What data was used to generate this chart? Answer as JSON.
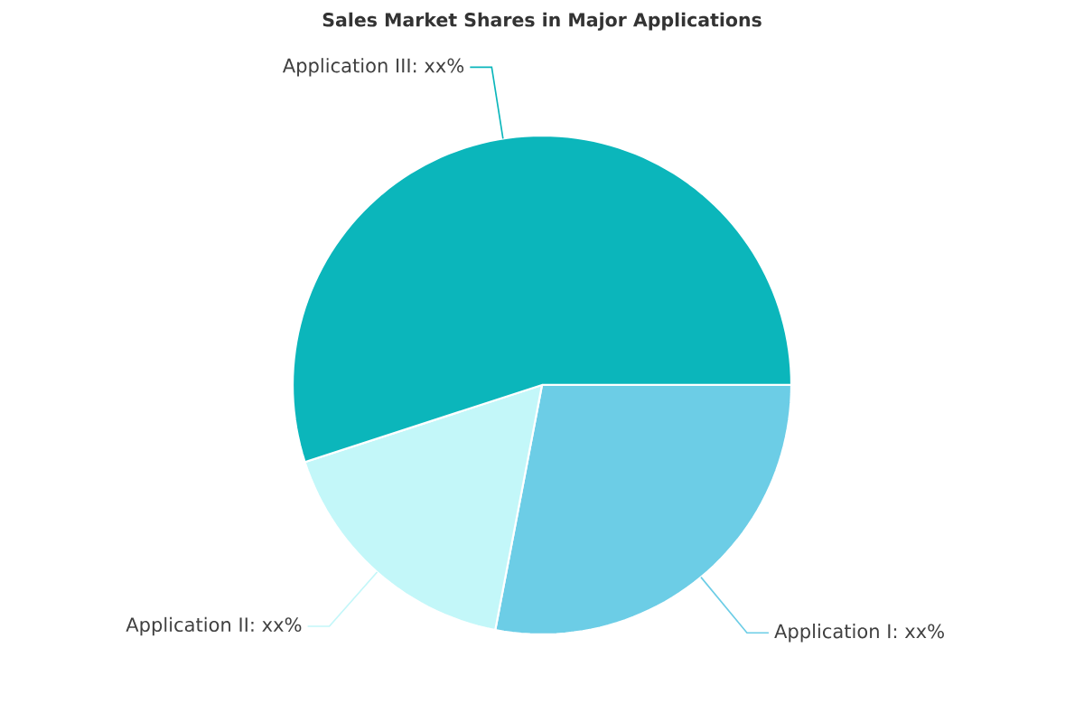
{
  "chart_data": {
    "type": "pie",
    "title": "Sales Market Shares in Major Applications",
    "categories": [
      "Application I: xx%",
      "Application II: xx%",
      "Application III: xx%"
    ],
    "values": [
      28,
      17,
      55
    ],
    "colors": [
      "#6ccde6",
      "#c3f7f9",
      "#0bb6bb"
    ]
  }
}
